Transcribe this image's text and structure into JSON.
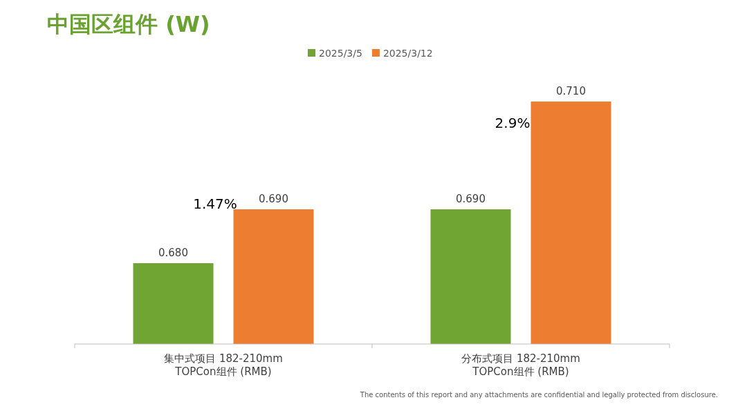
{
  "chart_data": {
    "type": "bar",
    "title": "中国区组件 (W)",
    "categories": [
      "集中式项目 182-210mm\nTOPCon组件 (RMB)",
      "分布式项目 182-210mm\nTOPCon组件 (RMB)"
    ],
    "series": [
      {
        "name": "2025/3/5",
        "color": "#70a433",
        "values": [
          0.68,
          0.69
        ],
        "value_labels": [
          "0.680",
          "0.690"
        ]
      },
      {
        "name": "2025/3/12",
        "color": "#ed7d31",
        "values": [
          0.69,
          0.71
        ],
        "value_labels": [
          "0.690",
          "0.710"
        ]
      }
    ],
    "ylim": [
      0.665,
      0.71
    ],
    "tick_labels": "x",
    "legend": "top",
    "grid": false,
    "annotations": [
      "1.47%",
      "2.9%",
      "The contents of this report and any attachments are confidential and legally protected from disclosure."
    ]
  }
}
